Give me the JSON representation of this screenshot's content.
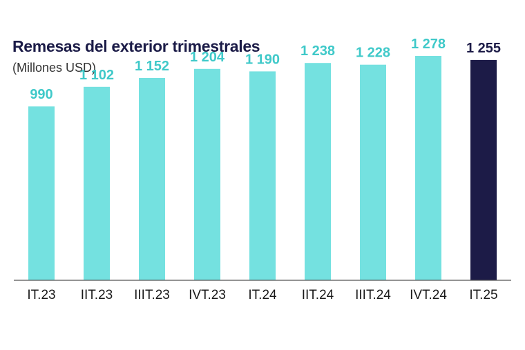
{
  "title": "Remesas del exterior trimestrales",
  "subtitle": "(Millones USD)",
  "colors": {
    "bar": "#74e1e0",
    "highlight": "#1c1b47",
    "label": "#3fc9c9",
    "axis": "#555555"
  },
  "chart_data": {
    "type": "bar",
    "title": "Remesas del exterior trimestrales",
    "subtitle": "(Millones USD)",
    "categories": [
      "IT.23",
      "IIT.23",
      "IIIT.23",
      "IVT.23",
      "IT.24",
      "IIT.24",
      "IIIT.24",
      "IVT.24",
      "IT.25"
    ],
    "values": [
      990,
      1102,
      1152,
      1204,
      1190,
      1238,
      1228,
      1278,
      1255
    ],
    "value_labels": [
      "990",
      "1 102",
      "1 152",
      "1 204",
      "1 190",
      "1 238",
      "1 228",
      "1 278",
      "1 255"
    ],
    "highlight_index": 8,
    "xlabel": "",
    "ylabel": "",
    "ylim": [
      0,
      1500
    ],
    "grid": false,
    "legend": "none"
  }
}
